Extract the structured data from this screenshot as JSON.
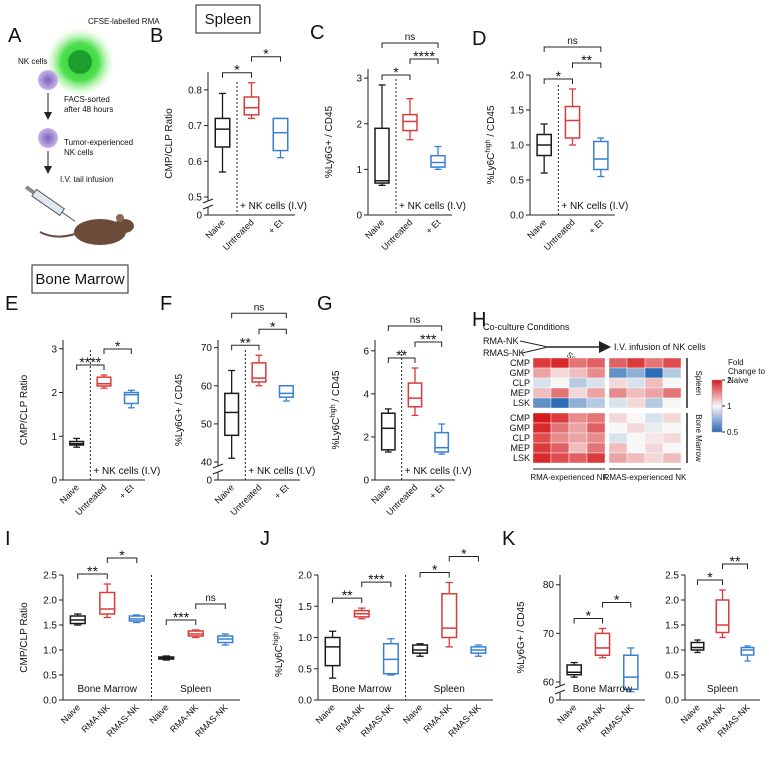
{
  "sections": [
    "Spleen",
    "Bone Marrow"
  ],
  "diagram": {
    "label": "A",
    "tumor": "CFSE-labelled RMA",
    "nk": "NK cells",
    "sort": [
      "FACS-sorted",
      "after 48 hours"
    ],
    "experienced": [
      "Tumor-experienced",
      "NK cells"
    ],
    "infusion": "I.V. tail infusion"
  },
  "chart_data": [
    {
      "type": "box",
      "label": "B",
      "ylabel": "CMP/CLP Ratio",
      "ylim": [
        0,
        0.85
      ],
      "yticks": [
        0,
        0.5,
        0.6,
        0.7,
        0.8
      ],
      "axis_break": true,
      "annotation": "+ NK cells (I.V)",
      "boxes": [
        {
          "name": "Naive",
          "color": "#1a1a1a",
          "whislo": 0.57,
          "q1": 0.64,
          "med": 0.69,
          "q3": 0.72,
          "whishi": 0.79
        },
        {
          "name": "Untreated",
          "color": "#d93a3a",
          "whislo": 0.72,
          "q1": 0.73,
          "med": 0.75,
          "q3": 0.78,
          "whishi": 0.82
        },
        {
          "name": "+ Et",
          "color": "#3a7fd5",
          "whislo": 0.61,
          "q1": 0.63,
          "med": 0.68,
          "q3": 0.72,
          "whishi": 0.72
        }
      ],
      "significance": [
        {
          "pair": [
            0,
            1
          ],
          "label": "*"
        },
        {
          "pair": [
            1,
            2
          ],
          "label": "*"
        }
      ]
    },
    {
      "type": "box",
      "label": "C",
      "ylabel": "%Ly6G+ / CD45",
      "ylim": [
        0,
        3.2
      ],
      "yticks": [
        0,
        1,
        2,
        3
      ],
      "annotation": "+ NK cells (I.V)",
      "boxes": [
        {
          "name": "Naive",
          "color": "#1a1a1a",
          "whislo": 0.65,
          "q1": 0.7,
          "med": 0.75,
          "q3": 1.9,
          "whishi": 2.85
        },
        {
          "name": "Untreated",
          "color": "#d93a3a",
          "whislo": 1.65,
          "q1": 1.85,
          "med": 2.05,
          "q3": 2.2,
          "whishi": 2.55
        },
        {
          "name": "+ Et",
          "color": "#3a7fd5",
          "whislo": 1.0,
          "q1": 1.05,
          "med": 1.15,
          "q3": 1.3,
          "whishi": 1.5
        }
      ],
      "significance": [
        {
          "pair": [
            0,
            1
          ],
          "label": "*"
        },
        {
          "pair": [
            1,
            2
          ],
          "label": "****"
        },
        {
          "pair": [
            0,
            2
          ],
          "label": "ns"
        }
      ]
    },
    {
      "type": "box",
      "label": "D",
      "ylabel": {
        "pre": "%Ly6C",
        "sup": "high",
        "post": " / CD45"
      },
      "ylim": [
        0,
        2.0
      ],
      "yticks": [
        {
          "value": 0,
          "label": "0.0"
        },
        0.5,
        {
          "value": 1,
          "label": "1.0"
        },
        1.5,
        {
          "value": 2,
          "label": "2.0"
        }
      ],
      "annotation": "+ NK cells (I.V)",
      "boxes": [
        {
          "name": "Naive",
          "color": "#1a1a1a",
          "whislo": 0.6,
          "q1": 0.85,
          "med": 1.0,
          "q3": 1.15,
          "whishi": 1.3
        },
        {
          "name": "Untreated",
          "color": "#d93a3a",
          "whislo": 1.0,
          "q1": 1.1,
          "med": 1.35,
          "q3": 1.55,
          "whishi": 1.8
        },
        {
          "name": "+ Et",
          "color": "#3a7fd5",
          "whislo": 0.55,
          "q1": 0.65,
          "med": 0.8,
          "q3": 1.05,
          "whishi": 1.1
        }
      ],
      "significance": [
        {
          "pair": [
            0,
            1
          ],
          "label": "*"
        },
        {
          "pair": [
            1,
            2
          ],
          "label": "**"
        },
        {
          "pair": [
            0,
            2
          ],
          "label": "ns"
        }
      ]
    },
    {
      "type": "box",
      "label": "E",
      "ylabel": "CMP/CLP Ratio",
      "ylim": [
        0,
        3.2
      ],
      "yticks": [
        0,
        1,
        2,
        3
      ],
      "annotation": "+ NK cells (I.V)",
      "boxes": [
        {
          "name": "Naive",
          "color": "#1a1a1a",
          "whislo": 0.75,
          "q1": 0.8,
          "med": 0.83,
          "q3": 0.88,
          "whishi": 0.95
        },
        {
          "name": "Untreated",
          "color": "#d93a3a",
          "whislo": 2.1,
          "q1": 2.15,
          "med": 2.2,
          "q3": 2.35,
          "whishi": 2.4
        },
        {
          "name": "+ Et",
          "color": "#3a7fd5",
          "whislo": 1.65,
          "q1": 1.75,
          "med": 1.95,
          "q3": 2.0,
          "whishi": 2.05
        }
      ],
      "significance": [
        {
          "pair": [
            0,
            1
          ],
          "label": "****"
        },
        {
          "pair": [
            1,
            2
          ],
          "label": "*"
        }
      ]
    },
    {
      "type": "box",
      "label": "F",
      "ylabel": "%Ly6G+ / CD45",
      "ylim": [
        0,
        72
      ],
      "yticks": [
        0,
        40,
        50,
        60,
        70
      ],
      "axis_break": true,
      "annotation": "+ NK cells (I.V)",
      "boxes": [
        {
          "name": "Naive",
          "color": "#1a1a1a",
          "whislo": 41,
          "q1": 47,
          "med": 53,
          "q3": 58,
          "whishi": 64
        },
        {
          "name": "Untreated",
          "color": "#d93a3a",
          "whislo": 60,
          "q1": 61,
          "med": 62,
          "q3": 66,
          "whishi": 68
        },
        {
          "name": "+ Et",
          "color": "#3a7fd5",
          "whislo": 56,
          "q1": 57,
          "med": 58,
          "q3": 60,
          "whishi": 60
        }
      ],
      "significance": [
        {
          "pair": [
            0,
            1
          ],
          "label": "**"
        },
        {
          "pair": [
            1,
            2
          ],
          "label": "*"
        },
        {
          "pair": [
            0,
            2
          ],
          "label": "ns"
        }
      ]
    },
    {
      "type": "box",
      "label": "G",
      "ylabel": {
        "pre": "%Ly6C",
        "sup": "high",
        "post": " / CD45"
      },
      "ylim": [
        0,
        6.5
      ],
      "yticks": [
        0,
        2,
        4,
        6
      ],
      "annotation": "+ NK cells (I.V)",
      "boxes": [
        {
          "name": "Naive",
          "color": "#1a1a1a",
          "whislo": 1.3,
          "q1": 1.4,
          "med": 2.4,
          "q3": 3.1,
          "whishi": 3.3
        },
        {
          "name": "Untreated",
          "color": "#d93a3a",
          "whislo": 3.0,
          "q1": 3.4,
          "med": 3.8,
          "q3": 4.5,
          "whishi": 5.2
        },
        {
          "name": "+ Et",
          "color": "#3a7fd5",
          "whislo": 1.2,
          "q1": 1.3,
          "med": 1.5,
          "q3": 2.2,
          "whishi": 2.6
        }
      ],
      "significance": [
        {
          "pair": [
            0,
            1
          ],
          "label": "**"
        },
        {
          "pair": [
            1,
            2
          ],
          "label": "***"
        },
        {
          "pair": [
            0,
            2
          ],
          "label": "ns"
        }
      ]
    },
    {
      "type": "heatmap",
      "label": "H",
      "conditions_title": "Co-culture Conditions",
      "conditions": [
        "RMA-NK",
        "RMAS-NK"
      ],
      "step": "Sorting",
      "outcome": "I.V. infusion of NK cells",
      "rows": [
        "CMP",
        "GMP",
        "CLP",
        "MEP",
        "LSK",
        "CMP",
        "GMP",
        "CLP",
        "MEP",
        "LSK"
      ],
      "row_groups": [
        "Spleen",
        "Bone Marrow"
      ],
      "column_groups": [
        "RMA-experienced NK",
        "RMAS-experienced NK"
      ],
      "values": [
        [
          1.8,
          1.9,
          1.5,
          1.6,
          1.6,
          1.8,
          1.5,
          1.7
        ],
        [
          1.3,
          1.1,
          1.2,
          1.4,
          0.6,
          0.7,
          0.5,
          0.8
        ],
        [
          0.9,
          1.0,
          0.8,
          0.9,
          1.1,
          0.9,
          1.2,
          1.0
        ],
        [
          1.2,
          1.5,
          1.1,
          1.3,
          1.4,
          1.2,
          1.3,
          1.5
        ],
        [
          0.6,
          0.5,
          0.7,
          0.8,
          0.9,
          1.1,
          0.8,
          1.0
        ],
        [
          2.0,
          1.8,
          1.4,
          1.5,
          1.1,
          1.0,
          0.9,
          1.1
        ],
        [
          1.9,
          1.5,
          1.3,
          1.6,
          1.0,
          1.1,
          0.95,
          1.0
        ],
        [
          1.7,
          1.4,
          1.3,
          1.4,
          0.9,
          1.0,
          1.05,
          1.1
        ],
        [
          1.8,
          1.6,
          1.2,
          1.5,
          1.2,
          1.0,
          1.1,
          1.0
        ],
        [
          1.9,
          1.7,
          1.6,
          1.8,
          1.3,
          1.2,
          1.1,
          1.2
        ]
      ],
      "colorbar_title": "Fold Change to Naive",
      "colorbar_ticks": [
        2,
        1,
        0.5
      ],
      "clim": [
        0.5,
        2
      ],
      "log_scale": true,
      "colormap": [
        "#2c6bb5",
        "#f7f7f7",
        "#d7191c"
      ]
    },
    {
      "type": "box",
      "label": "I",
      "ylabel": "CMP/CLP Ratio",
      "ylim": [
        0,
        2.5
      ],
      "yticks": [
        {
          "value": 0,
          "label": "0.0"
        },
        0.5,
        {
          "value": 1,
          "label": "1.0"
        },
        1.5,
        {
          "value": 2,
          "label": "2.0"
        },
        2.5
      ],
      "groups": [
        "Bone Marrow",
        "Spleen"
      ],
      "boxes": [
        {
          "name": "Naive",
          "color": "#1a1a1a",
          "whislo": 1.5,
          "q1": 1.53,
          "med": 1.6,
          "q3": 1.68,
          "whishi": 1.72
        },
        {
          "name": "RMA-NK",
          "color": "#d93a3a",
          "whislo": 1.65,
          "q1": 1.72,
          "med": 1.82,
          "q3": 2.15,
          "whishi": 2.32
        },
        {
          "name": "RMAS-NK",
          "color": "#3a7fd5",
          "whislo": 1.55,
          "q1": 1.58,
          "med": 1.62,
          "q3": 1.68,
          "whishi": 1.7
        },
        {
          "name": "Naive",
          "color": "#1a1a1a",
          "whislo": 0.8,
          "q1": 0.82,
          "med": 0.84,
          "q3": 0.86,
          "whishi": 0.88
        },
        {
          "name": "RMA-NK",
          "color": "#d93a3a",
          "whislo": 1.25,
          "q1": 1.28,
          "med": 1.32,
          "q3": 1.38,
          "whishi": 1.4
        },
        {
          "name": "RMAS-NK",
          "color": "#3a7fd5",
          "whislo": 1.1,
          "q1": 1.15,
          "med": 1.22,
          "q3": 1.28,
          "whishi": 1.32
        }
      ],
      "significance": [
        {
          "pair": [
            0,
            1
          ],
          "label": "**"
        },
        {
          "pair": [
            1,
            2
          ],
          "label": "*"
        },
        {
          "pair": [
            3,
            4
          ],
          "label": "***"
        },
        {
          "pair": [
            4,
            5
          ],
          "label": "ns"
        }
      ]
    },
    {
      "type": "box",
      "label": "J",
      "ylabel": {
        "pre": "%Ly6C",
        "sup": "high",
        "post": " / CD45"
      },
      "ylim": [
        0,
        2.0
      ],
      "yticks": [
        {
          "value": 0,
          "label": "0.0"
        },
        0.5,
        {
          "value": 1,
          "label": "1.0"
        },
        1.5,
        {
          "value": 2,
          "label": "2.0"
        }
      ],
      "groups": [
        "Bone Marrow",
        "Spleen"
      ],
      "boxes": [
        {
          "name": "Naive",
          "color": "#1a1a1a",
          "whislo": 0.35,
          "q1": 0.55,
          "med": 0.85,
          "q3": 1.0,
          "whishi": 1.1
        },
        {
          "name": "RMA-NK",
          "color": "#d93a3a",
          "whislo": 1.3,
          "q1": 1.33,
          "med": 1.38,
          "q3": 1.43,
          "whishi": 1.47
        },
        {
          "name": "RMAS-NK",
          "color": "#3a7fd5",
          "whislo": 0.4,
          "q1": 0.42,
          "med": 0.65,
          "q3": 0.9,
          "whishi": 0.98
        },
        {
          "name": "Naive",
          "color": "#1a1a1a",
          "whislo": 0.7,
          "q1": 0.75,
          "med": 0.8,
          "q3": 0.88,
          "whishi": 0.9
        },
        {
          "name": "RMA-NK",
          "color": "#d93a3a",
          "whislo": 0.85,
          "q1": 1.0,
          "med": 1.15,
          "q3": 1.7,
          "whishi": 1.88
        },
        {
          "name": "RMAS-NK",
          "color": "#3a7fd5",
          "whislo": 0.7,
          "q1": 0.75,
          "med": 0.8,
          "q3": 0.85,
          "whishi": 0.88
        }
      ],
      "significance": [
        {
          "pair": [
            0,
            1
          ],
          "label": "**"
        },
        {
          "pair": [
            1,
            2
          ],
          "label": "***"
        },
        {
          "pair": [
            3,
            4
          ],
          "label": "*"
        },
        {
          "pair": [
            4,
            5
          ],
          "label": "*"
        }
      ]
    },
    {
      "type": "box",
      "label": "K",
      "ylabel": "%Ly6G+ / CD45",
      "ylim": [
        0,
        82
      ],
      "yticks": [
        0,
        60,
        70,
        80
      ],
      "axis_break": true,
      "group": "Bone Marrow",
      "boxes": [
        {
          "name": "Naive",
          "color": "#1a1a1a",
          "whislo": 61,
          "q1": 61.5,
          "med": 62,
          "q3": 63.5,
          "whishi": 64
        },
        {
          "name": "RMA-NK",
          "color": "#d93a3a",
          "whislo": 65,
          "q1": 65.5,
          "med": 67,
          "q3": 70,
          "whishi": 71
        },
        {
          "name": "RMAS-NK",
          "color": "#3a7fd5",
          "whislo": 58,
          "q1": 58.5,
          "med": 61,
          "q3": 65.5,
          "whishi": 67
        }
      ],
      "significance": [
        {
          "pair": [
            0,
            1
          ],
          "label": "*"
        },
        {
          "pair": [
            1,
            2
          ],
          "label": "*"
        }
      ]
    },
    {
      "type": "box",
      "ylim": [
        0,
        2.5
      ],
      "yticks": [
        {
          "value": 0,
          "label": "0.0"
        },
        0.5,
        {
          "value": 1,
          "label": "1.0"
        },
        1.5,
        {
          "value": 2,
          "label": "2.0"
        },
        2.5
      ],
      "group": "Spleen",
      "boxes": [
        {
          "name": "Naive",
          "color": "#1a1a1a",
          "whislo": 0.95,
          "q1": 1.0,
          "med": 1.05,
          "q3": 1.15,
          "whishi": 1.2
        },
        {
          "name": "RMA-NK",
          "color": "#d93a3a",
          "whislo": 1.25,
          "q1": 1.35,
          "med": 1.5,
          "q3": 2.0,
          "whishi": 2.2
        },
        {
          "name": "RMAS-NK",
          "color": "#3a7fd5",
          "whislo": 0.78,
          "q1": 0.9,
          "med": 1.0,
          "q3": 1.05,
          "whishi": 1.08
        }
      ],
      "significance": [
        {
          "pair": [
            0,
            1
          ],
          "label": "*"
        },
        {
          "pair": [
            1,
            2
          ],
          "label": "**"
        }
      ]
    }
  ]
}
